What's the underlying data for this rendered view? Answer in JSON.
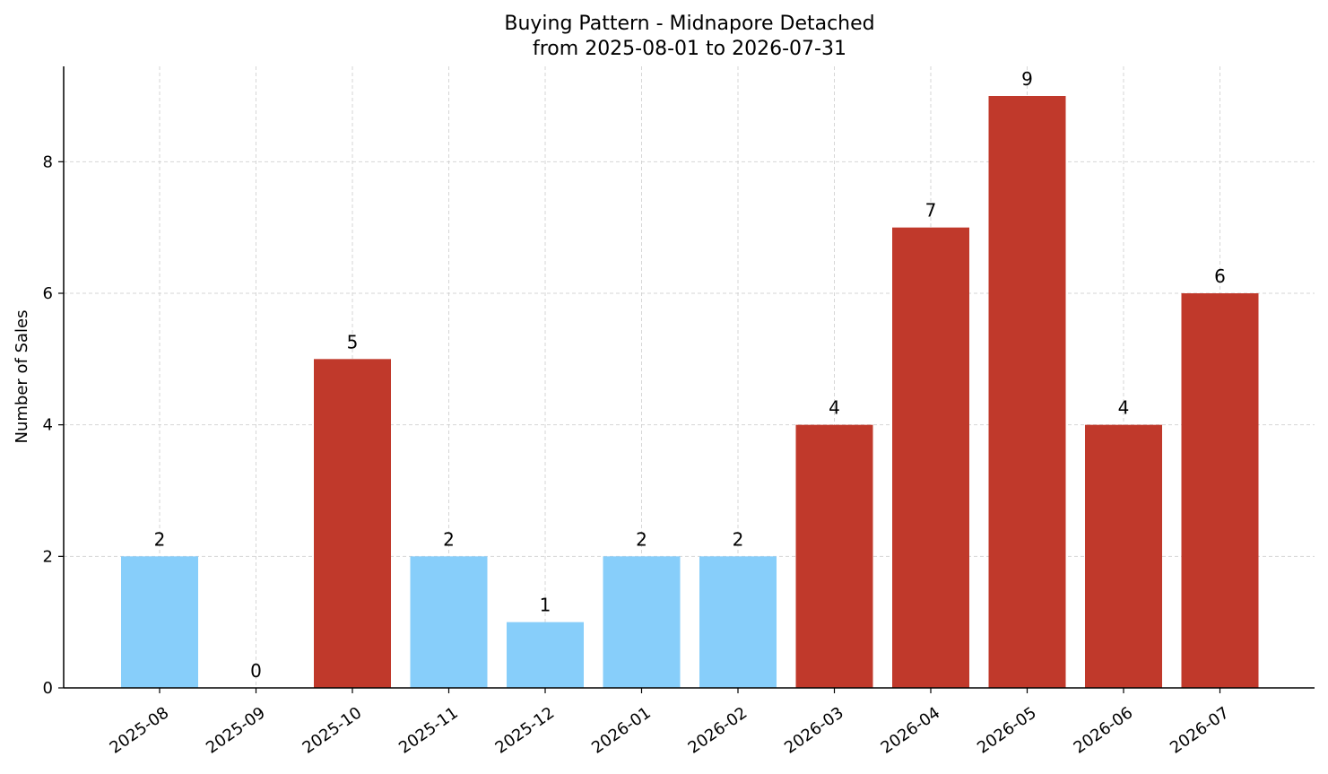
{
  "chart_data": {
    "type": "bar",
    "title": "Buying Pattern - Midnapore Detached",
    "subtitle": "from 2025-08-01 to 2026-07-31",
    "xlabel": "",
    "ylabel": "Number of Sales",
    "ylim": [
      0,
      9.45
    ],
    "yticks": [
      0,
      2,
      4,
      6,
      8
    ],
    "grid": true,
    "categories": [
      "2025-08",
      "2025-09",
      "2025-10",
      "2025-11",
      "2025-12",
      "2026-01",
      "2026-02",
      "2026-03",
      "2026-04",
      "2026-05",
      "2026-06",
      "2026-07"
    ],
    "values": [
      2,
      0,
      5,
      2,
      1,
      2,
      2,
      4,
      7,
      9,
      4,
      6
    ],
    "colors": [
      "#87CEFA",
      "#87CEFA",
      "#C0392B",
      "#87CEFA",
      "#87CEFA",
      "#87CEFA",
      "#87CEFA",
      "#C0392B",
      "#C0392B",
      "#C0392B",
      "#C0392B",
      "#C0392B"
    ],
    "value_labels": [
      "2",
      "0",
      "5",
      "2",
      "1",
      "2",
      "2",
      "4",
      "7",
      "9",
      "4",
      "6"
    ]
  }
}
